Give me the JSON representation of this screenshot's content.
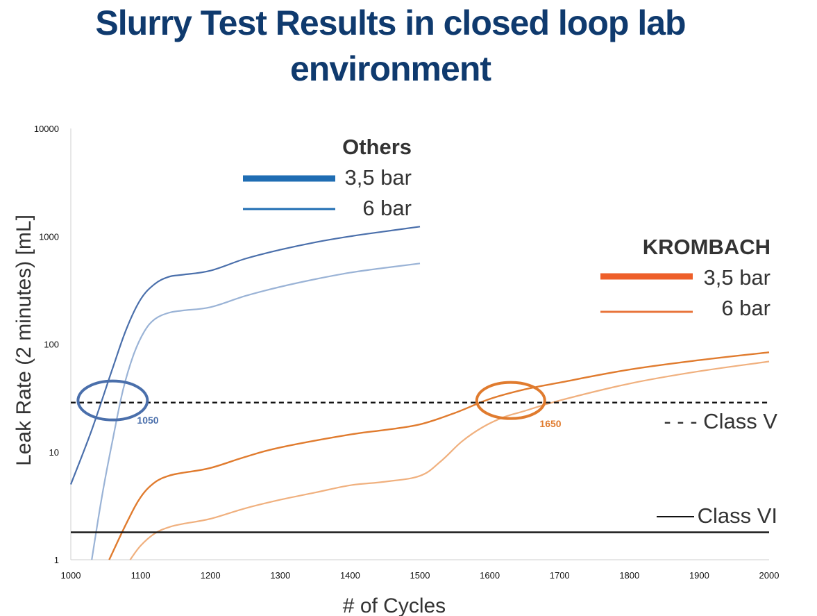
{
  "title_line1": "Slurry Test Results in closed loop lab",
  "title_line2": "environment",
  "chart_data": {
    "type": "line",
    "title": "Slurry Test Results in closed loop lab environment",
    "xlabel": "# of Cycles",
    "ylabel": "Leak Rate (2 minutes) [mL]",
    "xlim": [
      1000,
      2000
    ],
    "ylim": [
      1,
      10000
    ],
    "yscale": "log",
    "x_ticks": [
      "1000",
      "1100",
      "1200",
      "1300",
      "1400",
      "1500",
      "1600",
      "1700",
      "1800",
      "1900",
      "2000"
    ],
    "y_ticks": [
      "1",
      "10",
      "100",
      "1000",
      "10000"
    ],
    "grid": false,
    "legend_groups": [
      {
        "heading": "Others",
        "placement": "top-center",
        "items": [
          {
            "label": "3,5 bar",
            "color": "#1f6db3"
          },
          {
            "label": "6 bar",
            "color": "#1f6db3"
          }
        ]
      },
      {
        "heading": "KROMBACH",
        "placement": "right",
        "items": [
          {
            "label": "3,5 bar",
            "color": "#ee5f2a"
          },
          {
            "label": "6 bar",
            "color": "#e8743b"
          }
        ]
      }
    ],
    "series": [
      {
        "group": "Others",
        "name": "3,5 bar",
        "color": "#4a6fab",
        "width": 2.2,
        "x": [
          1000,
          1030,
          1060,
          1080,
          1100,
          1120,
          1140,
          1160,
          1200,
          1250,
          1300,
          1350,
          1400,
          1450,
          1500
        ],
        "y": [
          5,
          16,
          60,
          140,
          260,
          360,
          420,
          440,
          480,
          620,
          750,
          880,
          1000,
          1110,
          1230
        ]
      },
      {
        "group": "Others",
        "name": "6 bar",
        "color": "#9ab3d6",
        "width": 2.2,
        "x": [
          1030,
          1045,
          1060,
          1075,
          1090,
          1105,
          1120,
          1140,
          1160,
          1200,
          1250,
          1300,
          1350,
          1400,
          1450,
          1500
        ],
        "y": [
          1,
          4,
          13,
          38,
          80,
          130,
          170,
          195,
          205,
          220,
          280,
          340,
          400,
          460,
          510,
          560
        ]
      },
      {
        "group": "KROMBACH",
        "name": "3,5 bar",
        "color": "#e07b2e",
        "width": 2.4,
        "x": [
          1055,
          1080,
          1100,
          1120,
          1140,
          1160,
          1200,
          1250,
          1300,
          1400,
          1450,
          1500,
          1550,
          1600,
          1650,
          1700,
          1800,
          1900,
          2000
        ],
        "y": [
          1,
          2.2,
          3.8,
          5.2,
          6.0,
          6.4,
          7.1,
          9.0,
          11,
          14.5,
          16,
          18,
          23,
          31,
          38,
          44,
          58,
          71,
          84
        ]
      },
      {
        "group": "KROMBACH",
        "name": "6 bar",
        "color": "#f0b07e",
        "width": 2.2,
        "x": [
          1085,
          1100,
          1120,
          1140,
          1160,
          1200,
          1250,
          1300,
          1350,
          1400,
          1450,
          1500,
          1530,
          1560,
          1590,
          1620,
          1650,
          1700,
          1800,
          1900,
          2000
        ],
        "y": [
          1,
          1.35,
          1.75,
          2.0,
          2.15,
          2.4,
          3.0,
          3.6,
          4.2,
          4.9,
          5.3,
          6.0,
          8.2,
          12.5,
          17,
          21,
          24,
          30,
          43,
          56,
          69
        ]
      },
      {
        "name": "Class V",
        "color": "#111111",
        "style": "dashed",
        "width": 2.4,
        "x": [
          1000,
          2000
        ],
        "y": [
          28.7,
          28.7
        ]
      },
      {
        "name": "Class VI",
        "color": "#111111",
        "style": "solid",
        "width": 2.4,
        "x": [
          1000,
          2000
        ],
        "y": [
          1.8,
          1.8
        ]
      }
    ],
    "reference_lines": [
      {
        "label": "- - - Class V",
        "value": 28.7
      },
      {
        "label": "Class VI",
        "value": 1.8
      }
    ],
    "annotations": [
      {
        "text": "1050",
        "x": 1060,
        "y": 30,
        "color": "#4a6fab",
        "marker": "ellipse"
      },
      {
        "text": "1650",
        "x": 1630,
        "y": 30,
        "color": "#e07b2e",
        "marker": "ellipse"
      }
    ]
  }
}
